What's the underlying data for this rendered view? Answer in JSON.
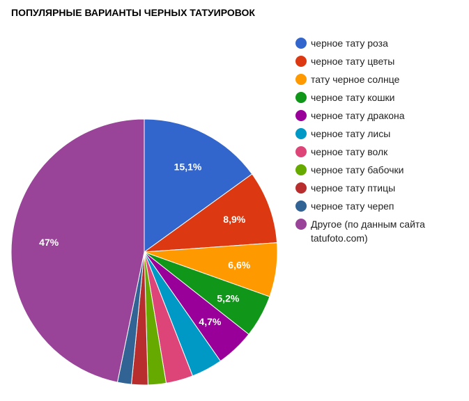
{
  "chart_data": {
    "type": "pie",
    "title": "ПОПУЛЯРНЫЕ ВАРИАНТЫ ЧЕРНЫХ ТАТУИРОВОК",
    "legend_position": "right",
    "slices": [
      {
        "label": "черное тату роза",
        "value": 15.1,
        "value_label": "15,1%",
        "color": "#3366cc"
      },
      {
        "label": "черное тату цветы",
        "value": 8.9,
        "value_label": "8,9%",
        "color": "#dc3912"
      },
      {
        "label": "тату черное солнце",
        "value": 6.6,
        "value_label": "6,6%",
        "color": "#ff9900"
      },
      {
        "label": "черное тату кошки",
        "value": 5.2,
        "value_label": "5,2%",
        "color": "#109618"
      },
      {
        "label": "черное тату дракона",
        "value": 4.7,
        "value_label": "4,7%",
        "color": "#990099"
      },
      {
        "label": "черное тату лисы",
        "value": 3.8,
        "value_label": "",
        "color": "#0099c6"
      },
      {
        "label": "черное тату волк",
        "value": 3.3,
        "value_label": "",
        "color": "#dd4477"
      },
      {
        "label": "черное тату бабочки",
        "value": 2.2,
        "value_label": "",
        "color": "#66aa00"
      },
      {
        "label": "черное тату птицы",
        "value": 2.0,
        "value_label": "",
        "color": "#b82e2e"
      },
      {
        "label": "черное тату череп",
        "value": 1.7,
        "value_label": "",
        "color": "#316395"
      },
      {
        "label": "Другое (по данным сайта tatufoto.com)",
        "value": 47,
        "value_label": "47%",
        "color": "#994499"
      }
    ]
  }
}
